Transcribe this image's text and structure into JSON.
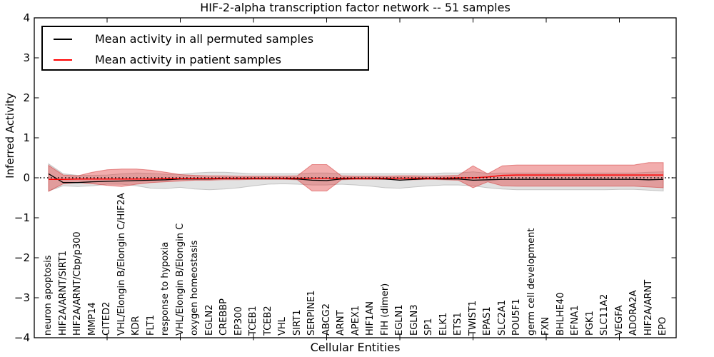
{
  "figure": {
    "title": "HIF-2-alpha transcription factor network -- 51 samples",
    "xlabel": "Cellular Entities",
    "ylabel": "Inferred Activity"
  },
  "legend": {
    "entries": [
      {
        "label": "Mean activity in all permuted samples",
        "color": "#000000"
      },
      {
        "label": "Mean activity in patient samples",
        "color": "#ff0000"
      }
    ]
  },
  "chart_data": {
    "type": "line",
    "title": "HIF-2-alpha transcription factor network -- 51 samples",
    "xlabel": "Cellular Entities",
    "ylabel": "Inferred Activity",
    "ylim": [
      -4,
      4
    ],
    "ytick_values": [
      4,
      3,
      2,
      1,
      0,
      -1,
      -2,
      -3,
      -4
    ],
    "ytick_labels": [
      "4",
      "3",
      "2",
      "1",
      "0",
      "−1",
      "−2",
      "−3",
      "−4"
    ],
    "grid": false,
    "legend_position": "upper left",
    "categories": [
      "neuron apoptosis",
      "HIF2A/ARNT/SIRT1",
      "HIF2A/ARNT/Cbp/p300",
      "MMP14",
      "CITED2",
      "VHL/Elongin B/Elongin C/HIF2A",
      "KDR",
      "FLT1",
      "response to hypoxia",
      "VHL/Elongin B/Elongin C",
      "oxygen homeostasis",
      "EGLN2",
      "CREBBP",
      "EP300",
      "TCEB1",
      "TCEB2",
      "VHL",
      "SIRT1",
      "SERPINE1",
      "ABCG2",
      "ARNT",
      "APEX1",
      "HIF1AN",
      "FIH (dimer)",
      "EGLN1",
      "EGLN3",
      "SP1",
      "ELK1",
      "ETS1",
      "TWIST1",
      "EPAS1",
      "SLC2A1",
      "POU5F1",
      "germ cell development",
      "FXN",
      "BHLHE40",
      "EFNA1",
      "PGK1",
      "SLC11A2",
      "VEGFA",
      "ADORA2A",
      "HIF2A/ARNT",
      "EPO"
    ],
    "series": [
      {
        "name": "Mean activity in all permuted samples",
        "color": "#000000",
        "style": "solid",
        "values": [
          0.1,
          -0.12,
          -0.12,
          -0.1,
          -0.09,
          -0.08,
          -0.07,
          -0.06,
          -0.05,
          -0.03,
          -0.03,
          -0.03,
          -0.02,
          -0.02,
          -0.02,
          -0.02,
          -0.02,
          -0.03,
          -0.06,
          -0.07,
          -0.03,
          -0.02,
          -0.02,
          -0.03,
          -0.06,
          -0.04,
          -0.02,
          -0.03,
          -0.03,
          -0.06,
          -0.05,
          -0.04,
          -0.04,
          -0.04,
          -0.04,
          -0.04,
          -0.04,
          -0.04,
          -0.04,
          -0.04,
          -0.04,
          -0.05,
          -0.04
        ]
      },
      {
        "name": "Mean activity in patient samples",
        "color": "#ff0000",
        "style": "solid",
        "values": [
          -0.04,
          -0.04,
          -0.03,
          -0.03,
          -0.03,
          -0.03,
          -0.03,
          -0.03,
          -0.02,
          -0.02,
          -0.02,
          -0.02,
          -0.01,
          -0.01,
          -0.01,
          -0.01,
          -0.01,
          -0.01,
          -0.01,
          -0.01,
          -0.01,
          -0.01,
          -0.01,
          -0.01,
          -0.01,
          -0.01,
          -0.01,
          -0.01,
          0.0,
          0.0,
          0.02,
          0.06,
          0.07,
          0.07,
          0.07,
          0.07,
          0.07,
          0.07,
          0.07,
          0.07,
          0.07,
          0.07,
          0.07
        ]
      }
    ],
    "bands": [
      {
        "name": "permuted samples range",
        "fill": "rgba(190,190,190,0.45)",
        "edge": "rgba(160,160,160,0.55)",
        "upper": [
          0.35,
          0.1,
          0.06,
          0.06,
          0.07,
          0.1,
          0.12,
          0.11,
          0.09,
          0.09,
          0.12,
          0.14,
          0.14,
          0.12,
          0.1,
          0.1,
          0.1,
          0.1,
          0.12,
          0.12,
          0.1,
          0.1,
          0.1,
          0.1,
          0.1,
          0.1,
          0.1,
          0.12,
          0.12,
          0.15,
          0.11,
          0.12,
          0.12,
          0.12,
          0.12,
          0.12,
          0.12,
          0.12,
          0.12,
          0.12,
          0.12,
          0.14,
          0.15
        ],
        "lower": [
          -0.33,
          -0.2,
          -0.22,
          -0.2,
          -0.16,
          -0.16,
          -0.2,
          -0.26,
          -0.27,
          -0.24,
          -0.28,
          -0.3,
          -0.28,
          -0.25,
          -0.2,
          -0.16,
          -0.15,
          -0.16,
          -0.18,
          -0.18,
          -0.16,
          -0.18,
          -0.21,
          -0.25,
          -0.26,
          -0.23,
          -0.2,
          -0.18,
          -0.18,
          -0.2,
          -0.25,
          -0.28,
          -0.3,
          -0.3,
          -0.3,
          -0.3,
          -0.3,
          -0.3,
          -0.3,
          -0.29,
          -0.29,
          -0.31,
          -0.33
        ]
      },
      {
        "name": "patient samples range",
        "fill": "rgba(225,60,60,0.42)",
        "edge": "rgba(210,45,45,0.5)",
        "upper": [
          0.31,
          0.07,
          0.05,
          0.14,
          0.2,
          0.22,
          0.22,
          0.19,
          0.14,
          0.08,
          0.06,
          0.05,
          0.05,
          0.04,
          0.04,
          0.04,
          0.04,
          0.05,
          0.33,
          0.33,
          0.05,
          0.04,
          0.04,
          0.04,
          0.05,
          0.05,
          0.04,
          0.05,
          0.06,
          0.3,
          0.1,
          0.3,
          0.32,
          0.32,
          0.32,
          0.32,
          0.32,
          0.32,
          0.32,
          0.32,
          0.32,
          0.38,
          0.38
        ],
        "lower": [
          -0.34,
          -0.15,
          -0.12,
          -0.15,
          -0.19,
          -0.22,
          -0.16,
          -0.12,
          -0.1,
          -0.08,
          -0.06,
          -0.06,
          -0.05,
          -0.05,
          -0.04,
          -0.04,
          -0.04,
          -0.05,
          -0.33,
          -0.33,
          -0.05,
          -0.04,
          -0.04,
          -0.04,
          -0.05,
          -0.05,
          -0.04,
          -0.05,
          -0.06,
          -0.25,
          -0.1,
          -0.2,
          -0.21,
          -0.21,
          -0.21,
          -0.21,
          -0.21,
          -0.21,
          -0.21,
          -0.21,
          -0.21,
          -0.23,
          -0.25
        ]
      }
    ],
    "reference_line": {
      "y": 0,
      "style": "dotted",
      "color": "#000000"
    },
    "xtick_mark_indices": [
      4,
      9,
      14,
      19,
      24,
      29,
      34,
      39
    ]
  }
}
